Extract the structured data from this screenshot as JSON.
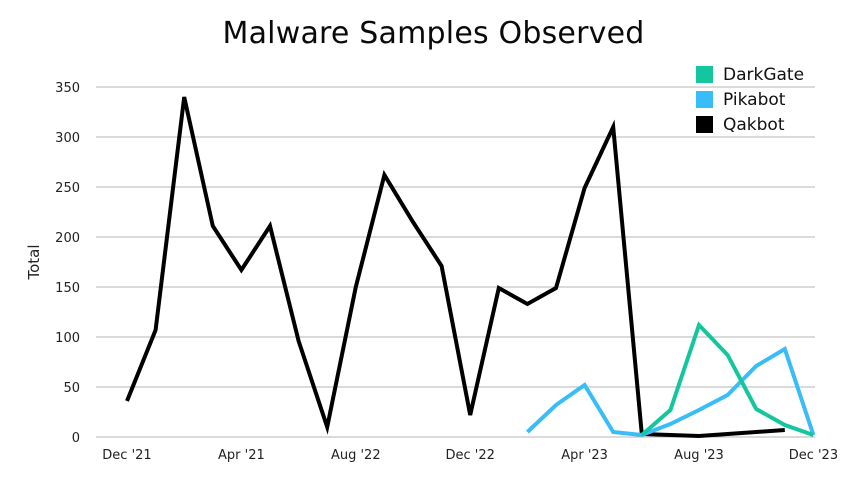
{
  "chart_data": {
    "type": "line",
    "title": "Malware Samples Observed",
    "xlabel": "",
    "ylabel": "Total",
    "ylim": [
      0,
      350
    ],
    "yticks": [
      0,
      50,
      100,
      150,
      200,
      250,
      300,
      350
    ],
    "grid": true,
    "legend_position": "top-right",
    "x_tick_labels": [
      "Dec '21",
      "Apr '21",
      "Aug '22",
      "Dec '22",
      "Apr '23",
      "Aug '23",
      "Dec '23"
    ],
    "x_tick_indices": [
      0,
      4,
      8,
      12,
      16,
      20,
      24
    ],
    "x_count": 25,
    "series": [
      {
        "name": "DarkGate",
        "color": "#14c69e",
        "start_index": 18,
        "values": [
          2,
          27,
          112,
          82,
          28,
          12,
          2
        ]
      },
      {
        "name": "Pikabot",
        "color": "#38bdf8",
        "start_index": 14,
        "values": [
          5,
          32,
          52,
          5,
          2,
          13,
          27,
          42,
          71,
          88,
          2
        ]
      },
      {
        "name": "Qakbot",
        "color": "#000000",
        "start_index": 0,
        "values": [
          36,
          107,
          340,
          211,
          167,
          211,
          96,
          10,
          150,
          262,
          215,
          171,
          22,
          149,
          133,
          149,
          249,
          310,
          3,
          2,
          1,
          3,
          5,
          7
        ]
      }
    ]
  },
  "legend": [
    {
      "label": "DarkGate",
      "color": "#14c69e"
    },
    {
      "label": "Pikabot",
      "color": "#38bdf8"
    },
    {
      "label": "Qakbot",
      "color": "#000000"
    }
  ]
}
